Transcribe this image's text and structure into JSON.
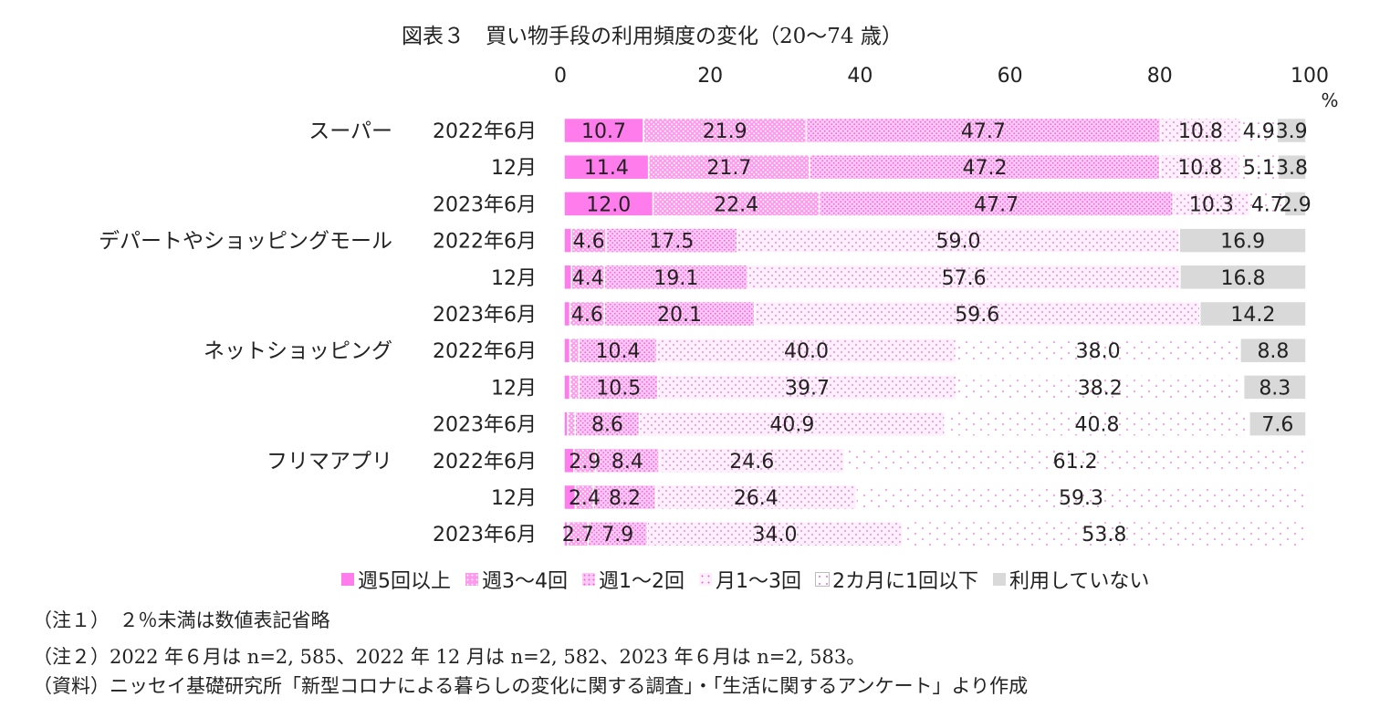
{
  "chart_data": {
    "type": "bar",
    "orientation": "horizontal",
    "stacked": true,
    "title": "図表３　買い物手段の利用頻度の変化（20～74 歳）",
    "unit": "%",
    "xlim": [
      0,
      100
    ],
    "xticks": [
      "0",
      "20",
      "40",
      "60",
      "80",
      "100"
    ],
    "legend_position": "bottom",
    "series": [
      {
        "name": "週5回以上",
        "color": "#ff88ee"
      },
      {
        "name": "週3～4回",
        "color": "#ff99ee"
      },
      {
        "name": "週1～2回",
        "color": "#ffbbf2"
      },
      {
        "name": "月1～3回",
        "color": "#ffd6f8"
      },
      {
        "name": "2カ月に1回以下",
        "color": "#ffe8fb"
      },
      {
        "name": "利用していない",
        "color": "#d9d9d9"
      }
    ],
    "groups": [
      {
        "label": "スーパー",
        "rows": [
          {
            "period": "2022年6月",
            "values": [
              10.7,
              21.9,
              47.7,
              10.8,
              4.9,
              3.9
            ],
            "labels": [
              "10.7",
              "21.9",
              "47.7",
              "10.8",
              "4.9",
              "3.9"
            ]
          },
          {
            "period": "12月",
            "values": [
              11.4,
              21.7,
              47.2,
              10.8,
              5.1,
              3.8
            ],
            "labels": [
              "11.4",
              "21.7",
              "47.2",
              "10.8",
              "5.1",
              "3.8"
            ]
          },
          {
            "period": "2023年6月",
            "values": [
              12.0,
              22.4,
              47.7,
              10.3,
              4.7,
              2.9
            ],
            "labels": [
              "12.0",
              "22.4",
              "47.7",
              "10.3",
              "4.7",
              "2.9"
            ]
          }
        ]
      },
      {
        "label": "デパートやショッピングモール",
        "rows": [
          {
            "period": "2022年6月",
            "values": [
              1.0,
              4.6,
              17.5,
              59.0,
              0,
              16.9
            ],
            "labels": [
              "",
              "4.6",
              "17.5",
              "59.0",
              "",
              "16.9"
            ]
          },
          {
            "period": "12月",
            "values": [
              1.0,
              4.4,
              19.1,
              57.6,
              0,
              16.8
            ],
            "labels": [
              "",
              "4.4",
              "19.1",
              "57.6",
              "",
              "16.8"
            ]
          },
          {
            "period": "2023年6月",
            "values": [
              0.8,
              4.6,
              20.1,
              59.6,
              0,
              14.2
            ],
            "labels": [
              "",
              "4.6",
              "20.1",
              "59.6",
              "",
              "14.2"
            ]
          }
        ]
      },
      {
        "label": "ネットショッピング",
        "rows": [
          {
            "period": "2022年6月",
            "values": [
              0.8,
              1.2,
              10.4,
              40.0,
              38.0,
              8.8
            ],
            "labels": [
              "",
              "",
              "10.4",
              "40.0",
              "38.0",
              "8.8"
            ]
          },
          {
            "period": "12月",
            "values": [
              0.8,
              1.2,
              10.5,
              39.7,
              38.2,
              8.3
            ],
            "labels": [
              "",
              "",
              "10.5",
              "39.7",
              "38.2",
              "8.3"
            ]
          },
          {
            "period": "2023年6月",
            "values": [
              0.5,
              1.0,
              8.6,
              40.9,
              40.8,
              7.6
            ],
            "labels": [
              "",
              "",
              "8.6",
              "40.9",
              "40.8",
              "7.6"
            ]
          }
        ]
      },
      {
        "label": "フリマアプリ",
        "rows": [
          {
            "period": "2022年6月",
            "values": [
              1.3,
              2.9,
              8.4,
              24.6,
              61.2,
              0
            ],
            "labels": [
              "",
              "2.9",
              "8.4",
              "24.6",
              "61.2",
              ""
            ]
          },
          {
            "period": "12月",
            "values": [
              1.5,
              2.4,
              8.2,
              26.4,
              59.3,
              0
            ],
            "labels": [
              "",
              "2.4",
              "8.2",
              "26.4",
              "59.3",
              ""
            ]
          },
          {
            "period": "2023年6月",
            "values": [
              0.5,
              2.7,
              7.9,
              34.0,
              53.8,
              0
            ],
            "labels": [
              "",
              "2.7",
              "7.9",
              "34.0",
              "53.8",
              ""
            ]
          }
        ]
      }
    ]
  },
  "notes": {
    "note1": "（注１）　２％未満は数値表記省略",
    "note2": "（注２）2022 年６月は n=2, 585、2022 年 12 月は n=2, 582、2023 年６月は n=2, 583。",
    "note3": "（資料）ニッセイ基礎研究所「新型コロナによる暮らしの変化に関する調査」・「生活に関するアンケート」より作成"
  }
}
